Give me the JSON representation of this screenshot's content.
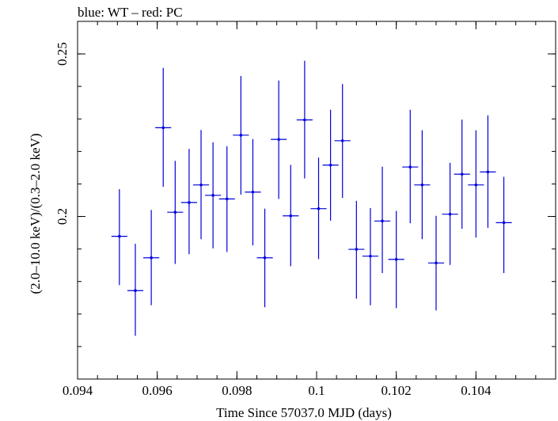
{
  "chart_data": {
    "type": "scatter",
    "title": "blue: WT – red: PC",
    "xlabel": "Time Since 57037.0 MJD (days)",
    "ylabel": "(2.0–10.0 keV)/(0.3–2.0 keV)",
    "xlim": [
      0.094,
      0.106
    ],
    "ylim": [
      0.15,
      0.26
    ],
    "x_ticks": [
      "0.094",
      "0.096",
      "0.098",
      "0.1",
      "0.102",
      "0.104"
    ],
    "x_tick_values": [
      0.094,
      0.096,
      0.098,
      0.1,
      0.102,
      0.104
    ],
    "y_ticks": [
      "0.2",
      "0.25"
    ],
    "y_tick_values": [
      0.2,
      0.25
    ],
    "grid": false,
    "series": [
      {
        "color": "#0000dd",
        "points": [
          {
            "x": 0.09505,
            "y": 0.1939,
            "xerr": 0.0002,
            "ylo": 0.1789,
            "yhi": 0.2084
          },
          {
            "x": 0.09545,
            "y": 0.1772,
            "xerr": 0.0002,
            "ylo": 0.1633,
            "yhi": 0.1916
          },
          {
            "x": 0.09585,
            "y": 0.1873,
            "xerr": 0.0002,
            "ylo": 0.1727,
            "yhi": 0.202
          },
          {
            "x": 0.09615,
            "y": 0.2273,
            "xerr": 0.0002,
            "ylo": 0.2091,
            "yhi": 0.2457
          },
          {
            "x": 0.09645,
            "y": 0.2013,
            "xerr": 0.0002,
            "ylo": 0.1854,
            "yhi": 0.2171
          },
          {
            "x": 0.0968,
            "y": 0.2043,
            "xerr": 0.0002,
            "ylo": 0.1884,
            "yhi": 0.2208
          },
          {
            "x": 0.0971,
            "y": 0.2097,
            "xerr": 0.0002,
            "ylo": 0.193,
            "yhi": 0.2266
          },
          {
            "x": 0.0974,
            "y": 0.2065,
            "xerr": 0.0002,
            "ylo": 0.1902,
            "yhi": 0.2228
          },
          {
            "x": 0.09775,
            "y": 0.2054,
            "xerr": 0.0002,
            "ylo": 0.1891,
            "yhi": 0.2216
          },
          {
            "x": 0.0981,
            "y": 0.225,
            "xerr": 0.0002,
            "ylo": 0.2067,
            "yhi": 0.2432
          },
          {
            "x": 0.0984,
            "y": 0.2075,
            "xerr": 0.0002,
            "ylo": 0.1911,
            "yhi": 0.2238
          },
          {
            "x": 0.0987,
            "y": 0.1873,
            "xerr": 0.0002,
            "ylo": 0.1721,
            "yhi": 0.2024
          },
          {
            "x": 0.09905,
            "y": 0.2237,
            "xerr": 0.0002,
            "ylo": 0.2054,
            "yhi": 0.2418
          },
          {
            "x": 0.09935,
            "y": 0.2002,
            "xerr": 0.0002,
            "ylo": 0.1847,
            "yhi": 0.2159
          },
          {
            "x": 0.0997,
            "y": 0.2297,
            "xerr": 0.0002,
            "ylo": 0.2117,
            "yhi": 0.2479
          },
          {
            "x": 0.10005,
            "y": 0.2024,
            "xerr": 0.0002,
            "ylo": 0.1869,
            "yhi": 0.2181
          },
          {
            "x": 0.10035,
            "y": 0.2158,
            "xerr": 0.0002,
            "ylo": 0.1987,
            "yhi": 0.2328
          },
          {
            "x": 0.10065,
            "y": 0.2233,
            "xerr": 0.0002,
            "ylo": 0.2057,
            "yhi": 0.2407
          },
          {
            "x": 0.101,
            "y": 0.1899,
            "xerr": 0.0002,
            "ylo": 0.1747,
            "yhi": 0.2048
          },
          {
            "x": 0.10135,
            "y": 0.1878,
            "xerr": 0.0002,
            "ylo": 0.1727,
            "yhi": 0.2026
          },
          {
            "x": 0.10165,
            "y": 0.1986,
            "xerr": 0.0002,
            "ylo": 0.1826,
            "yhi": 0.2153
          },
          {
            "x": 0.102,
            "y": 0.1868,
            "xerr": 0.0002,
            "ylo": 0.1718,
            "yhi": 0.2017
          },
          {
            "x": 0.10235,
            "y": 0.2152,
            "xerr": 0.0002,
            "ylo": 0.1979,
            "yhi": 0.2328
          },
          {
            "x": 0.10265,
            "y": 0.2097,
            "xerr": 0.0002,
            "ylo": 0.193,
            "yhi": 0.2265
          },
          {
            "x": 0.103,
            "y": 0.1857,
            "xerr": 0.0002,
            "ylo": 0.1711,
            "yhi": 0.2002
          },
          {
            "x": 0.10335,
            "y": 0.2007,
            "xerr": 0.0002,
            "ylo": 0.1851,
            "yhi": 0.2165
          },
          {
            "x": 0.10365,
            "y": 0.213,
            "xerr": 0.0002,
            "ylo": 0.1962,
            "yhi": 0.2298
          },
          {
            "x": 0.104,
            "y": 0.2097,
            "xerr": 0.0002,
            "ylo": 0.1935,
            "yhi": 0.2265
          },
          {
            "x": 0.1043,
            "y": 0.2137,
            "xerr": 0.0002,
            "ylo": 0.1965,
            "yhi": 0.2311
          },
          {
            "x": 0.1047,
            "y": 0.1981,
            "xerr": 0.0002,
            "ylo": 0.1826,
            "yhi": 0.2122
          }
        ]
      }
    ]
  }
}
